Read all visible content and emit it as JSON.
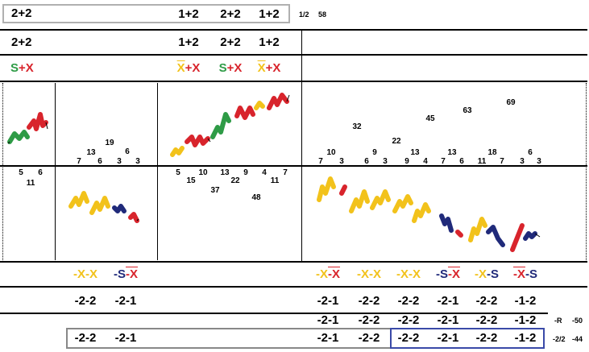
{
  "header": {
    "top_left": "2+2",
    "top_mid": [
      "1+2",
      "2+2",
      "1+2"
    ],
    "fraction": "1/2",
    "count": "58"
  },
  "row2": {
    "left": "2+2",
    "mid": [
      "1+2",
      "2+2",
      "1+2"
    ]
  },
  "row3": {
    "left": {
      "a": "S",
      "op": "+",
      "b": "X"
    },
    "mid": [
      {
        "a": "X",
        "op": "+",
        "b": "X"
      },
      {
        "a": "S",
        "op": "+",
        "b": "X"
      },
      {
        "a": "X",
        "op": "+",
        "b": "X"
      }
    ]
  },
  "upper_numbers": {
    "p2": [
      "7",
      "13",
      "6",
      "19",
      "3",
      "6",
      "3"
    ],
    "p4": [
      "7",
      "10",
      "3",
      "32",
      "6",
      "9",
      "3",
      "22",
      "9",
      "13",
      "4",
      "45",
      "7",
      "13",
      "6",
      "63",
      "11",
      "18",
      "7",
      "69",
      "3",
      "6",
      "3"
    ]
  },
  "lower_numbers": {
    "p1": [
      "5",
      "6",
      "11"
    ],
    "p3": [
      "5",
      "15",
      "10",
      "37",
      "13",
      "22",
      "9",
      "48",
      "4",
      "11",
      "7"
    ]
  },
  "pattern_labels": {
    "p2": [
      {
        "a": "-X",
        "b": "-X"
      },
      {
        "a": "-S",
        "b": "-X"
      }
    ],
    "p4": [
      {
        "a": "-X",
        "b": "-X"
      },
      {
        "a": "-X",
        "b": "-X"
      },
      {
        "a": "-X",
        "b": "-X"
      },
      {
        "a": "-S",
        "b": "-X"
      },
      {
        "a": "-X",
        "b": "-S"
      },
      {
        "a": "-X",
        "b": "-S"
      }
    ]
  },
  "row_values_1": {
    "p2": [
      "-2-2",
      "-2-1"
    ],
    "p4": [
      "-2-1",
      "-2-2",
      "-2-2",
      "-2-1",
      "-2-2",
      "-1-2"
    ]
  },
  "row_values_2": {
    "p4": [
      "-2-1",
      "-2-2",
      "-2-2",
      "-2-1",
      "-2-2",
      "-1-2"
    ],
    "side_label": "-R",
    "side_value": "-50"
  },
  "row_values_3": {
    "gray_box": [
      "-2-2",
      "-2-1",
      "-2-1",
      "-2-2"
    ],
    "blue_box": [
      "-2-2",
      "-2-1",
      "-2-2",
      "-1-2"
    ],
    "side_label": "-2/2",
    "side_value": "-44"
  },
  "colors": {
    "green": "#2e9b46",
    "red": "#d8242c",
    "yellow": "#f2c21b",
    "blue": "#202a7a",
    "gray_box": "#888888",
    "blue_box": "#3a4aa8"
  }
}
